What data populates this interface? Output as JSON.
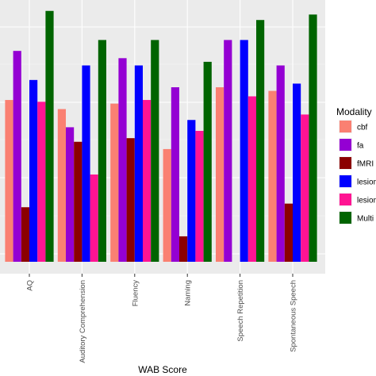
{
  "chart_data": {
    "type": "bar",
    "title": "",
    "xlabel": "WAB Score",
    "ylabel": "",
    "categories": [
      "AQ",
      "Auditory Comprehension",
      "Fluency",
      "Naming",
      "Speech Repetition",
      "Spontaneous Speech"
    ],
    "ylim": [
      0,
      0.72
    ],
    "grid": true,
    "legend": {
      "title": "Modality",
      "position": "right"
    },
    "series": [
      {
        "name": "cbf",
        "color": "#fa8072",
        "values": [
          0.445,
          0.42,
          0.435,
          0.31,
          0.48,
          0.47
        ]
      },
      {
        "name": "fa",
        "color": "#9400d3",
        "values": [
          0.58,
          0.37,
          0.56,
          0.48,
          0.61,
          0.54
        ]
      },
      {
        "name": "fMRI",
        "color": "#8b0000",
        "values": [
          0.15,
          0.33,
          0.34,
          0.07,
          0.0,
          0.16
        ]
      },
      {
        "name": "lesion",
        "color": "#0000ff",
        "values": [
          0.5,
          0.54,
          0.54,
          0.39,
          0.61,
          0.49
        ]
      },
      {
        "name": "lesion",
        "color": "#ff1493",
        "values": [
          0.44,
          0.24,
          0.445,
          0.36,
          0.455,
          0.405
        ]
      },
      {
        "name": "Multi",
        "color": "#006400",
        "values": [
          0.69,
          0.61,
          0.61,
          0.55,
          0.665,
          0.68
        ]
      }
    ]
  }
}
